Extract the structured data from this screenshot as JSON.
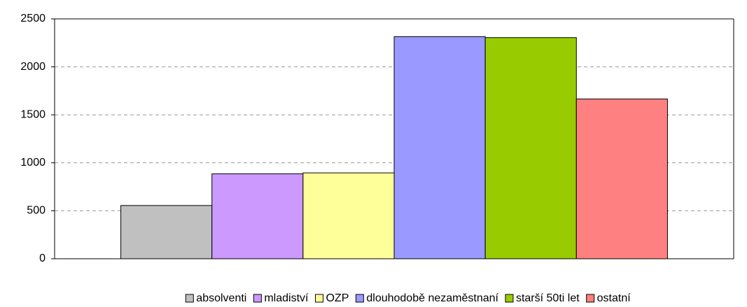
{
  "chart_data": {
    "type": "bar",
    "categories": [
      null
    ],
    "series": [
      {
        "name": "absolventi",
        "color": "#c0c0c0",
        "values": [
          555
        ]
      },
      {
        "name": "mladiství",
        "color": "#cc99ff",
        "values": [
          885
        ]
      },
      {
        "name": "OZP",
        "color": "#ffff99",
        "values": [
          895
        ]
      },
      {
        "name": "dlouhodobě nezaměstnaní",
        "color": "#9999ff",
        "values": [
          2315
        ]
      },
      {
        "name": "starší 50ti let",
        "color": "#99cc00",
        "values": [
          2305
        ]
      },
      {
        "name": "ostatní",
        "color": "#ff8080",
        "values": [
          1665
        ]
      }
    ],
    "ylim": [
      0,
      2500
    ],
    "yticks": [
      0,
      500,
      1000,
      1500,
      2000,
      2500
    ],
    "grid": true,
    "legend": "bottom"
  }
}
